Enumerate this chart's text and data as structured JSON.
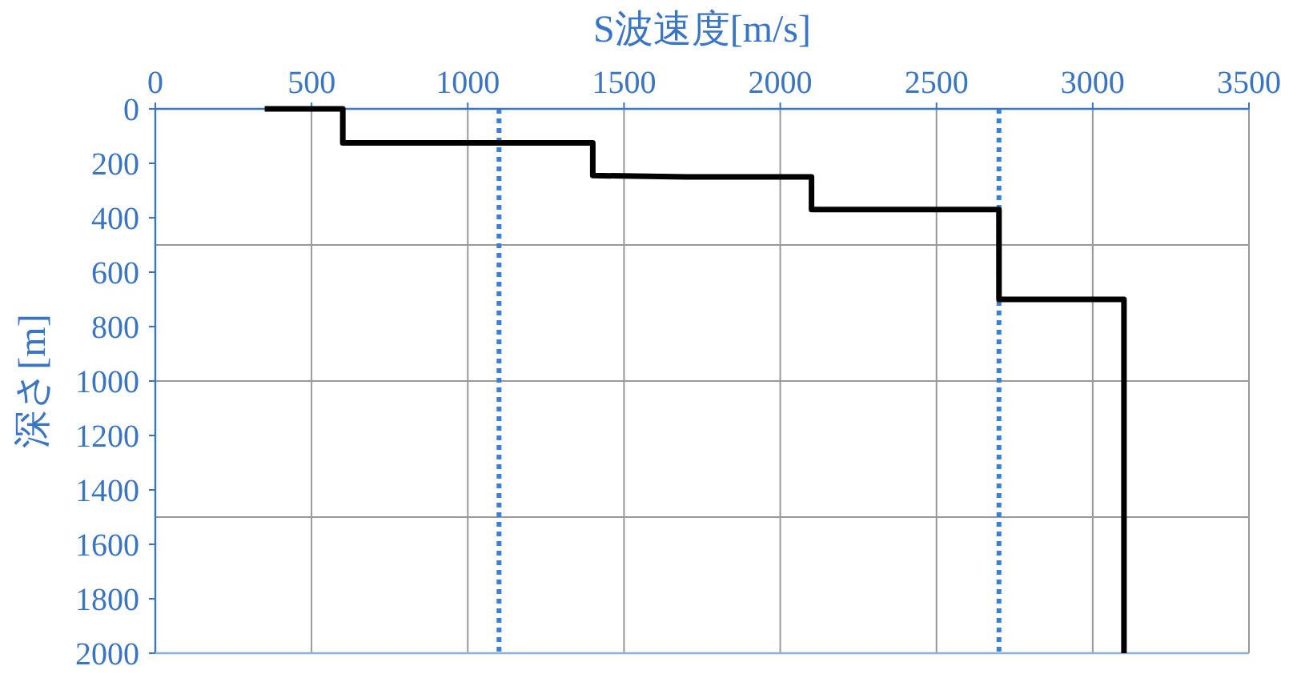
{
  "chart_data": {
    "type": "line",
    "xlabel": "S波速度[m/s]",
    "ylabel": "深さ[m]",
    "x": [
      350,
      600,
      600,
      1400,
      1400,
      1700,
      2100,
      2100,
      2700,
      2700,
      3100,
      3100
    ],
    "series": [
      {
        "color": "#000000",
        "values": [
          0,
          0,
          125,
          125,
          245,
          250,
          250,
          370,
          370,
          700,
          700,
          2000
        ]
      }
    ],
    "xlim": [
      0,
      3500
    ],
    "xticks": [
      0,
      500,
      1000,
      1500,
      2000,
      2500,
      3000,
      3500
    ],
    "ylim": [
      2000,
      0
    ],
    "yticks": [
      0,
      200,
      400,
      600,
      800,
      1000,
      1200,
      1400,
      1600,
      1800,
      2000
    ],
    "grid": "x",
    "marker": "none",
    "line_style": "solid",
    "ref_lines": [
      {
        "axis": "y",
        "value": 500,
        "color": "#999999",
        "line_style": "solid"
      },
      {
        "axis": "y",
        "value": 1000,
        "color": "#999999",
        "line_style": "solid"
      },
      {
        "axis": "y",
        "value": 1500,
        "color": "#999999",
        "line_style": "solid"
      },
      {
        "axis": "x",
        "value": 1100,
        "color": "#3a7fd8",
        "line_style": "dotted"
      },
      {
        "axis": "x",
        "value": 2700,
        "color": "#3a7fd8",
        "line_style": "dotted"
      }
    ]
  }
}
